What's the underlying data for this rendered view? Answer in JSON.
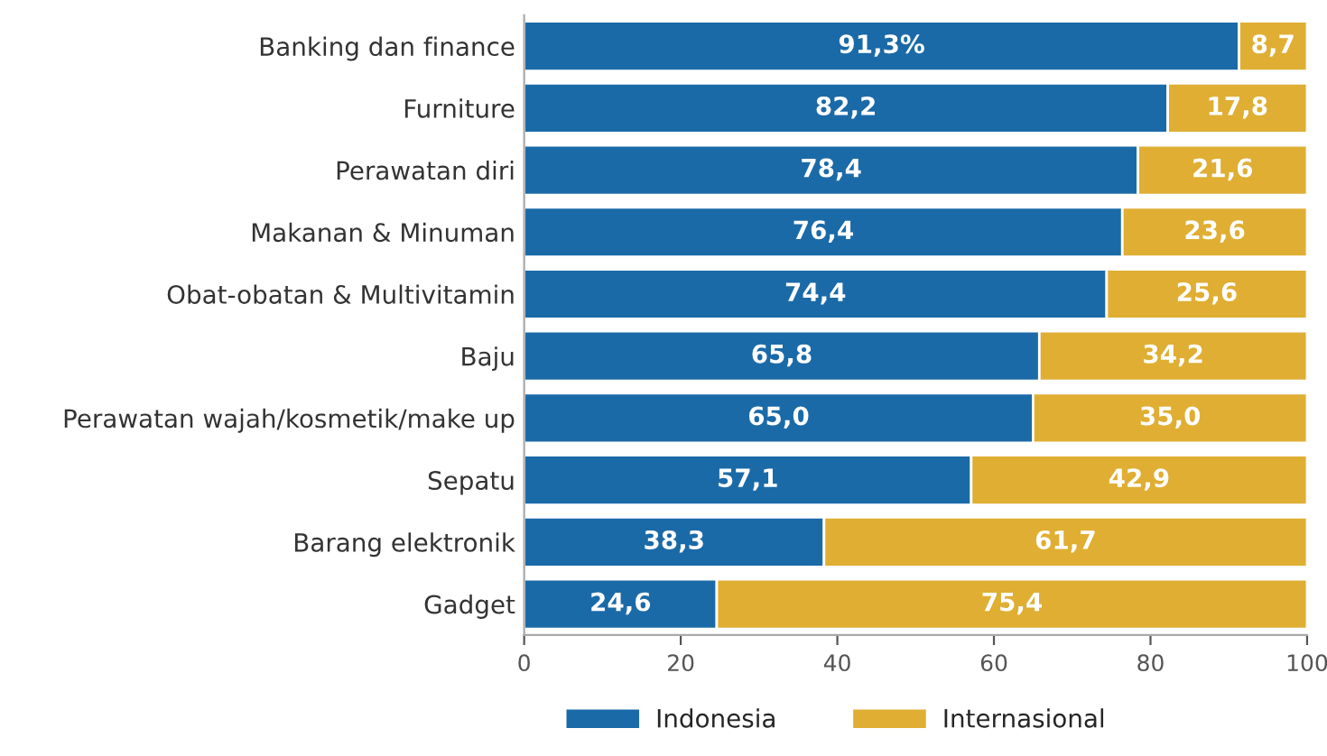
{
  "chart_data": {
    "type": "bar",
    "orientation": "horizontal",
    "stacked": true,
    "categories": [
      "Banking dan finance",
      "Furniture",
      "Perawatan diri",
      "Makanan & Minuman",
      "Obat-obatan & Multivitamin",
      "Baju",
      "Perawatan wajah/kosmetik/make up",
      "Sepatu",
      "Barang elektronik",
      "Gadget"
    ],
    "series": [
      {
        "name": "Indonesia",
        "color": "#1b6aa8",
        "values": [
          91.3,
          82.2,
          78.4,
          76.4,
          74.4,
          65.8,
          65.0,
          57.1,
          38.3,
          24.6
        ],
        "value_labels": [
          "91,3%",
          "82,2",
          "78,4",
          "76,4",
          "74,4",
          "65,8",
          "65,0",
          "57,1",
          "38,3",
          "24,6"
        ]
      },
      {
        "name": "Internasional",
        "color": "#dfae33",
        "values": [
          8.7,
          17.8,
          21.6,
          23.6,
          25.6,
          34.2,
          35.0,
          42.9,
          61.7,
          75.4
        ],
        "value_labels": [
          "8,7",
          "17,8",
          "21,6",
          "23,6",
          "25,6",
          "34,2",
          "35,0",
          "42,9",
          "61,7",
          "75,4"
        ]
      }
    ],
    "xlim": [
      0,
      100
    ],
    "xticks": [
      0,
      20,
      40,
      60,
      80,
      100
    ],
    "grid": false,
    "legend": "bottom"
  }
}
